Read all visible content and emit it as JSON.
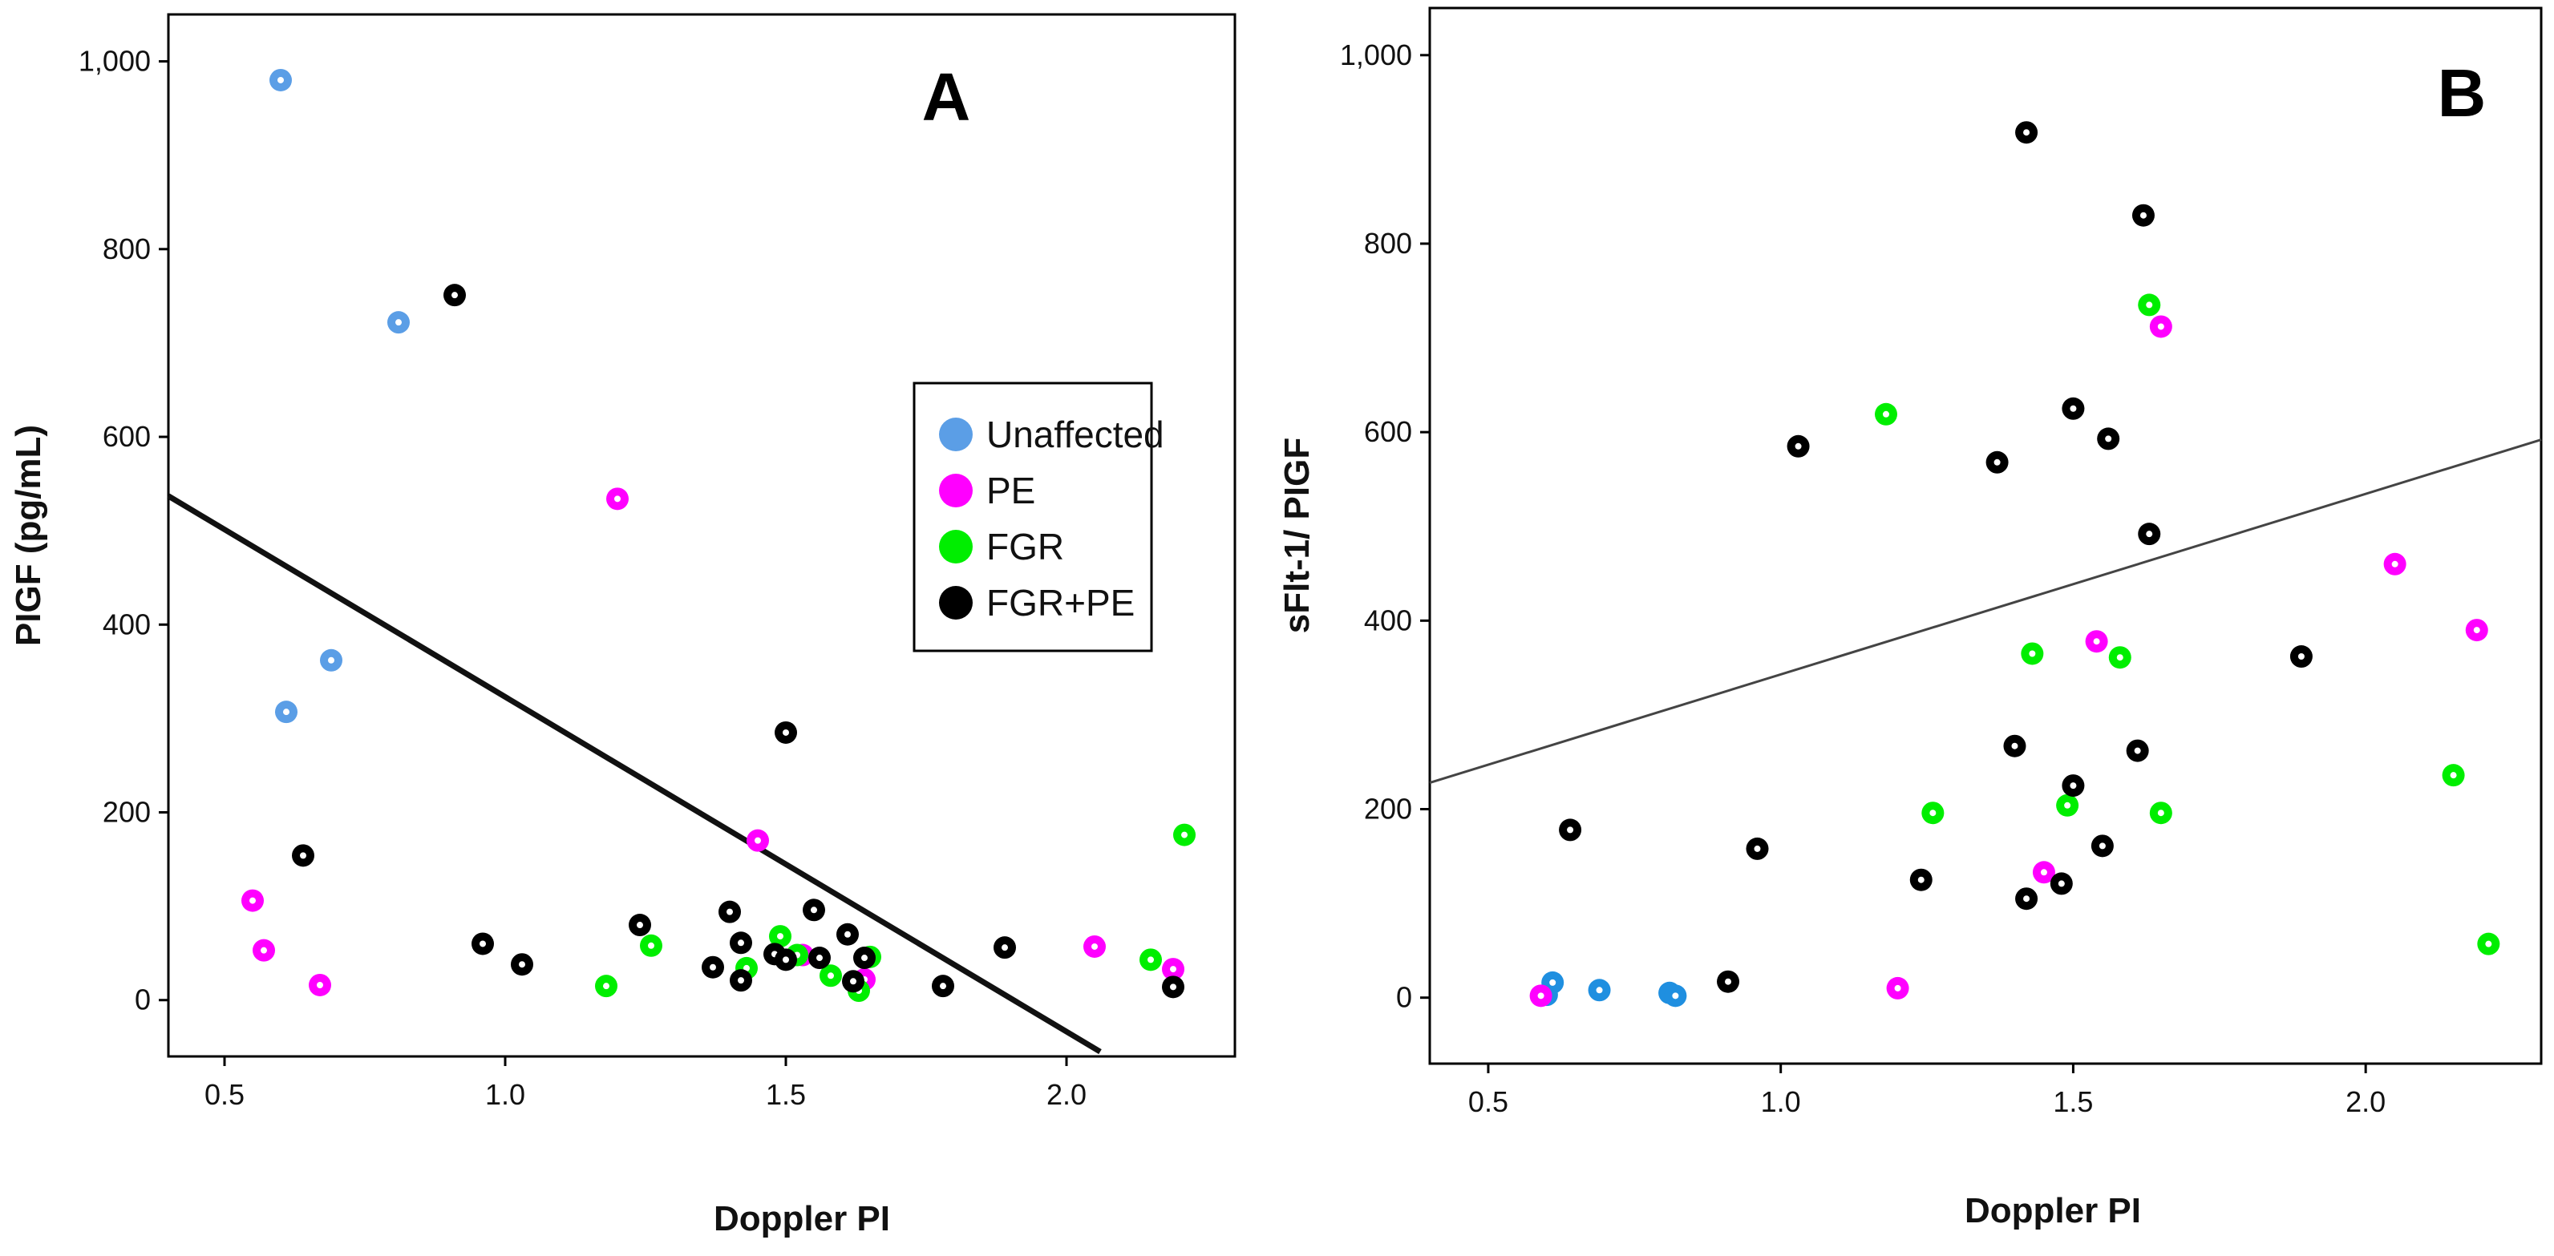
{
  "chart_data": [
    {
      "panel": "A",
      "type": "scatter",
      "xlabel": "Doppler PI",
      "ylabel": "PIGF (pg/mL)",
      "xlim": [
        0.4,
        2.3
      ],
      "ylim": [
        -60,
        1050
      ],
      "x_ticks": [
        0.5,
        1.0,
        1.5,
        2.0
      ],
      "x_tick_labels": [
        "0.5",
        "1.0",
        "1.5",
        "2.0"
      ],
      "y_ticks": [
        0,
        200,
        400,
        600,
        800,
        1000
      ],
      "y_tick_labels": [
        "0",
        "200",
        "400",
        "600",
        "800",
        "1,000"
      ],
      "grid": false,
      "legend": {
        "position": "right-center",
        "entries": [
          {
            "label": "Unaffected",
            "color": "#5b9ee6"
          },
          {
            "label": "PE",
            "color": "#ff00ff"
          },
          {
            "label": "FGR",
            "color": "#00ee00"
          },
          {
            "label": "FGR+PE",
            "color": "#000000"
          }
        ]
      },
      "fit_line": {
        "x": [
          0.4,
          2.06
        ],
        "y": [
          537,
          -55
        ],
        "width": "thick"
      },
      "series": [
        {
          "name": "Unaffected",
          "color": "#5b9ee6",
          "points": [
            [
              0.6,
              980
            ],
            [
              0.61,
              307
            ],
            [
              0.69,
              362
            ],
            [
              0.81,
              722
            ]
          ]
        },
        {
          "name": "PE",
          "color": "#ff00ff",
          "points": [
            [
              0.55,
              106
            ],
            [
              0.57,
              53
            ],
            [
              0.67,
              16
            ],
            [
              1.2,
              534
            ],
            [
              1.45,
              170
            ],
            [
              1.53,
              48
            ],
            [
              1.64,
              22
            ],
            [
              2.05,
              57
            ],
            [
              2.19,
              33
            ]
          ]
        },
        {
          "name": "FGR",
          "color": "#00ee00",
          "points": [
            [
              1.18,
              15
            ],
            [
              1.26,
              58
            ],
            [
              1.43,
              34
            ],
            [
              1.49,
              68
            ],
            [
              1.52,
              48
            ],
            [
              1.58,
              26
            ],
            [
              1.63,
              10
            ],
            [
              1.65,
              46
            ],
            [
              2.15,
              43
            ],
            [
              2.21,
              176
            ]
          ]
        },
        {
          "name": "FGR+PE",
          "color": "#000000",
          "points": [
            [
              0.64,
              154
            ],
            [
              0.91,
              751
            ],
            [
              0.96,
              60
            ],
            [
              1.03,
              38
            ],
            [
              1.24,
              80
            ],
            [
              1.37,
              35
            ],
            [
              1.4,
              94
            ],
            [
              1.42,
              61
            ],
            [
              1.42,
              21
            ],
            [
              1.48,
              49
            ],
            [
              1.5,
              285
            ],
            [
              1.5,
              43
            ],
            [
              1.55,
              96
            ],
            [
              1.56,
              45
            ],
            [
              1.61,
              70
            ],
            [
              1.62,
              20
            ],
            [
              1.64,
              45
            ],
            [
              1.78,
              15
            ],
            [
              1.89,
              56
            ],
            [
              2.19,
              14
            ]
          ]
        }
      ]
    },
    {
      "panel": "B",
      "type": "scatter",
      "xlabel": "Doppler PI",
      "ylabel": "sFlt-1/ PIGF",
      "xlim": [
        0.4,
        2.3
      ],
      "ylim": [
        -70,
        1050
      ],
      "x_ticks": [
        0.5,
        1.0,
        1.5,
        2.0
      ],
      "x_tick_labels": [
        "0.5",
        "1.0",
        "1.5",
        "2.0"
      ],
      "y_ticks": [
        0,
        200,
        400,
        600,
        800,
        1000
      ],
      "y_tick_labels": [
        "0",
        "200",
        "400",
        "600",
        "800",
        "1,000"
      ],
      "grid": false,
      "fit_line": {
        "x": [
          0.4,
          2.3
        ],
        "y": [
          228,
          592
        ],
        "width": "thin"
      },
      "series": [
        {
          "name": "Unaffected",
          "color": "#1f8fe0",
          "points": [
            [
              0.6,
              3
            ],
            [
              0.61,
              16
            ],
            [
              0.69,
              8
            ],
            [
              0.81,
              5
            ],
            [
              0.82,
              2
            ]
          ]
        },
        {
          "name": "PE",
          "color": "#ff00ff",
          "points": [
            [
              0.59,
              2
            ],
            [
              1.2,
              10
            ],
            [
              1.45,
              133
            ],
            [
              1.54,
              378
            ],
            [
              1.65,
              712
            ],
            [
              2.05,
              460
            ],
            [
              2.19,
              390
            ]
          ]
        },
        {
          "name": "FGR",
          "color": "#00ee00",
          "points": [
            [
              1.18,
              619
            ],
            [
              1.26,
              196
            ],
            [
              1.43,
              365
            ],
            [
              1.49,
              204
            ],
            [
              1.58,
              361
            ],
            [
              1.63,
              735
            ],
            [
              1.65,
              196
            ],
            [
              2.15,
              236
            ],
            [
              2.21,
              57
            ]
          ]
        },
        {
          "name": "FGR+PE",
          "color": "#000000",
          "points": [
            [
              0.64,
              178
            ],
            [
              0.91,
              17
            ],
            [
              0.96,
              158
            ],
            [
              1.03,
              585
            ],
            [
              1.24,
              125
            ],
            [
              1.37,
              568
            ],
            [
              1.4,
              267
            ],
            [
              1.42,
              105
            ],
            [
              1.42,
              918
            ],
            [
              1.48,
              121
            ],
            [
              1.5,
              225
            ],
            [
              1.5,
              625
            ],
            [
              1.55,
              161
            ],
            [
              1.56,
              593
            ],
            [
              1.61,
              262
            ],
            [
              1.62,
              830
            ],
            [
              1.63,
              492
            ],
            [
              1.89,
              362
            ]
          ]
        }
      ]
    }
  ]
}
